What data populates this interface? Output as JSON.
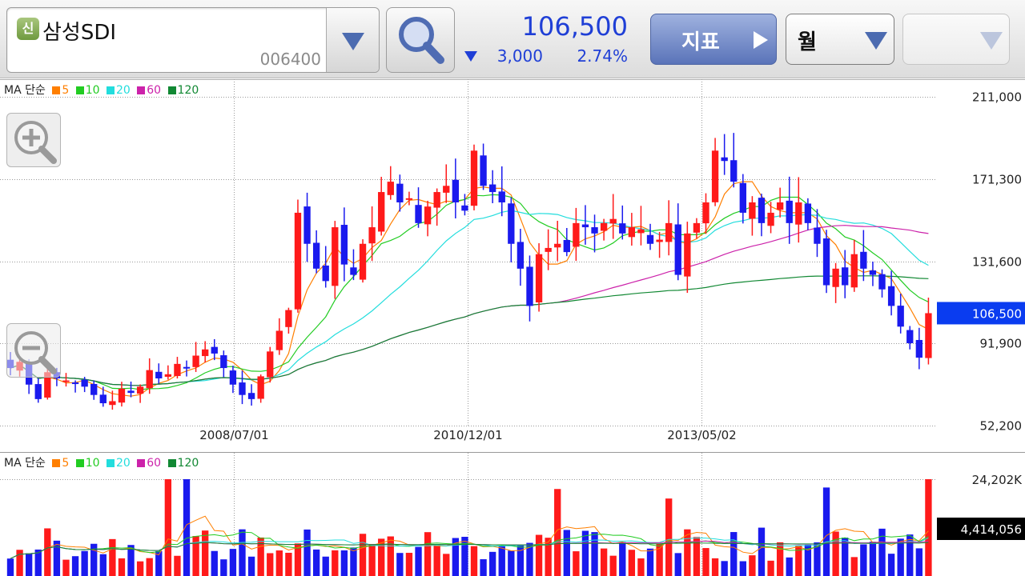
{
  "header": {
    "credit_badge": "신",
    "stock_name": "삼성SDI",
    "stock_code": "006400",
    "price": "106,500",
    "change_value": "3,000",
    "change_percent": "2.74%",
    "indicator_label": "지표",
    "period_label": "월",
    "third_select_value": ""
  },
  "colors": {
    "up": "#ff1a1a",
    "down": "#1a1aee",
    "accent": "#1f3fd6",
    "ma5": "#ff7f00",
    "ma10": "#22cc22",
    "ma20": "#22dddd",
    "ma60": "#cc22aa",
    "ma120": "#118833"
  },
  "price_chart": {
    "legend_label": "MA 단순",
    "legend_items": [
      {
        "label": "5",
        "color": "#ff7f00"
      },
      {
        "label": "10",
        "color": "#22cc22"
      },
      {
        "label": "20",
        "color": "#22dddd"
      },
      {
        "label": "60",
        "color": "#cc22aa"
      },
      {
        "label": "120",
        "color": "#118833"
      }
    ],
    "y_ticks": [
      "211,000",
      "171,300",
      "131,600",
      "91,900",
      "52,200"
    ],
    "x_ticks": [
      "2008/07/01",
      "2010/12/01",
      "2013/05/02"
    ],
    "current_price_label": "106,500"
  },
  "volume_chart": {
    "legend_label": "MA 단순",
    "legend_items": [
      {
        "label": "5",
        "color": "#ff7f00"
      },
      {
        "label": "10",
        "color": "#22cc22"
      },
      {
        "label": "20",
        "color": "#22dddd"
      },
      {
        "label": "60",
        "color": "#cc22aa"
      },
      {
        "label": "120",
        "color": "#118833"
      }
    ],
    "y_top_label": "24,202K",
    "current_volume_label": "4,414,056"
  },
  "chart_data": {
    "type": "candlestick",
    "period": "monthly",
    "ylim": [
      52200,
      211000
    ],
    "y_ticks": [
      211000,
      171300,
      131600,
      91900,
      52200
    ],
    "x_ticks": [
      "2008/07/01",
      "2010/12/01",
      "2013/05/02"
    ],
    "last_close": 106500,
    "closes": [
      80000,
      83000,
      72000,
      65000,
      78000,
      75000,
      74000,
      73000,
      71000,
      67000,
      63000,
      64000,
      70000,
      68000,
      71000,
      79000,
      75000,
      77000,
      82000,
      80000,
      86000,
      89000,
      87000,
      80000,
      72000,
      67000,
      65000,
      76000,
      88000,
      98000,
      108000,
      155000,
      140000,
      128000,
      122000,
      148000,
      130000,
      125000,
      140000,
      148000,
      165000,
      170000,
      160000,
      162000,
      150000,
      158000,
      165000,
      168000,
      160000,
      156000,
      185000,
      168000,
      165000,
      160000,
      140000,
      128000,
      110000,
      135000,
      138000,
      140000,
      136000,
      150000,
      148000,
      145000,
      150000,
      152000,
      145000,
      148000,
      147000,
      140000,
      142000,
      150000,
      125000,
      145000,
      150000,
      160000,
      185000,
      180000,
      170000,
      155000,
      160000,
      150000,
      155000,
      160000,
      150000,
      160000,
      150000,
      140000,
      120000,
      128000,
      120000,
      135000,
      128000,
      125000,
      118000,
      110000,
      100000,
      92000,
      85000,
      106500
    ],
    "volume_top_k": 24202,
    "last_volume": 4414056
  }
}
